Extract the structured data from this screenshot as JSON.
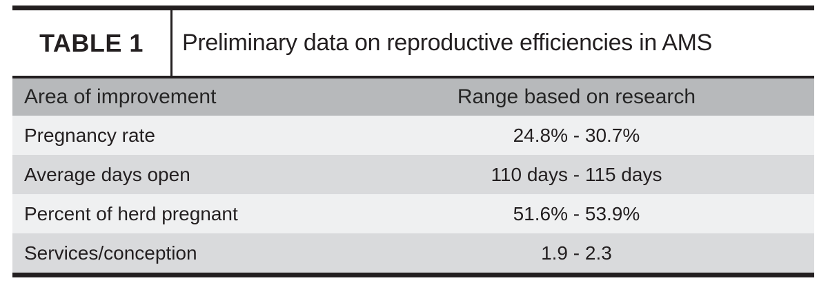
{
  "table_label": "TABLE 1",
  "title": "Preliminary data on reproductive efficiencies in AMS",
  "table": {
    "columns": [
      "Area of improvement",
      "Range based on research"
    ],
    "rows": [
      {
        "area": "Pregnancy rate",
        "range": "24.8% - 30.7%"
      },
      {
        "area": "Average days open",
        "range": "110 days - 115 days"
      },
      {
        "area": "Percent of herd pregnant",
        "range": "51.6% - 53.9%"
      },
      {
        "area": "Services/conception",
        "range": "1.9 - 2.3"
      }
    ]
  },
  "colors": {
    "rule_black": "#231f20",
    "header_bg": "#b7b9bb",
    "row_light_bg": "#eff0f1",
    "row_dark_bg": "#d9dadc",
    "text": "#231f20",
    "background": "#ffffff"
  }
}
